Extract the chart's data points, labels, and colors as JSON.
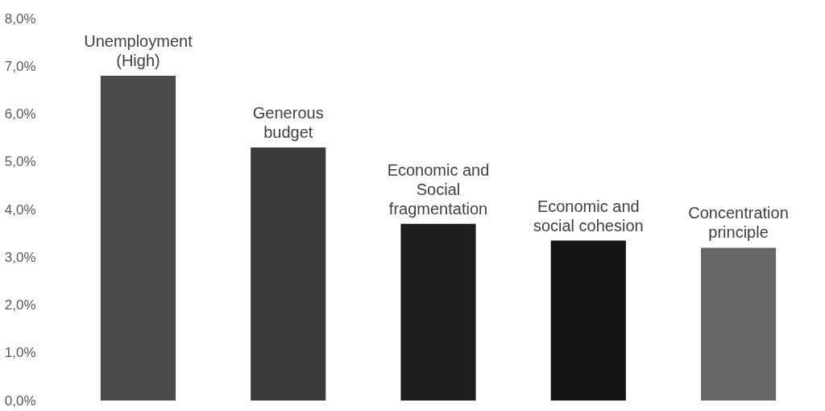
{
  "chart_data": {
    "type": "bar",
    "categories": [
      "Unemployment\n(High)",
      "Generous\nbudget",
      "Economic and\nSocial\nfragmentation",
      "Economic and\nsocial cohesion",
      "Concentration\nprinciple"
    ],
    "values": [
      6.8,
      5.3,
      3.7,
      3.35,
      3.2
    ],
    "colors": [
      "#4a4a4a",
      "#3a3a3a",
      "#1e1e1e",
      "#141414",
      "#666666"
    ],
    "ylim": [
      0,
      8
    ],
    "yticks": [
      {
        "value": 0,
        "label": "0,0%"
      },
      {
        "value": 1,
        "label": "1,0%"
      },
      {
        "value": 2,
        "label": "2,0%"
      },
      {
        "value": 3,
        "label": "3,0%"
      },
      {
        "value": 4,
        "label": "4,0%"
      },
      {
        "value": 5,
        "label": "5,0%"
      },
      {
        "value": 6,
        "label": "6,0%"
      },
      {
        "value": 7,
        "label": "7,0%"
      },
      {
        "value": 8,
        "label": "8,0%"
      }
    ],
    "grid": false,
    "tick_labels": "y"
  }
}
